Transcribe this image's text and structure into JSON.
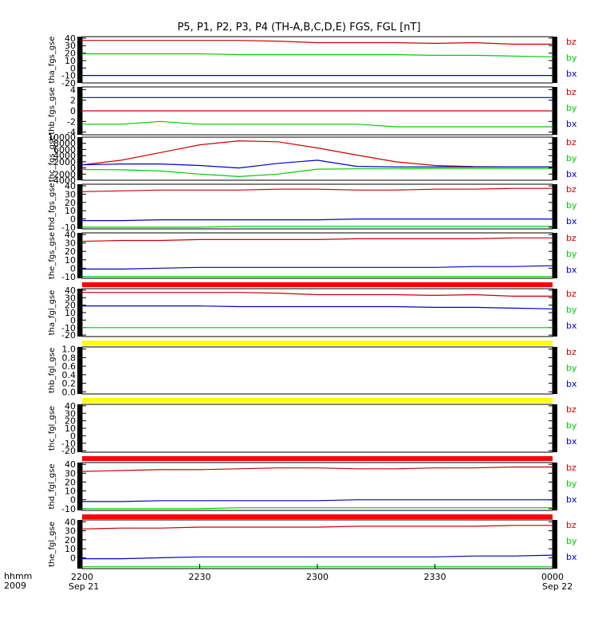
{
  "title": "P5, P1, P2, P3, P4 (TH-A,B,C,D,E) FGS, FGL [nT]",
  "time_axis": {
    "label_line1": "hhmm",
    "label_line2": "2009",
    "ticks": [
      "2200",
      "2230",
      "2300",
      "2330",
      "0000"
    ],
    "date_start": "Sep 21",
    "date_end": "Sep 22"
  },
  "colors": {
    "bz": "#cc0000",
    "by": "#00cc00",
    "bx": "#0000cc",
    "bar_red": "#ff0000",
    "bar_yellow": "#ffff00"
  },
  "chart_data": [
    {
      "type": "line",
      "ylabel": "tha_fgs_gse",
      "ylim": [
        -20,
        42
      ],
      "yticks": [
        "40",
        "30",
        "20",
        "10",
        "0",
        "-10",
        "-20"
      ],
      "tick_values": [
        40,
        30,
        20,
        10,
        0,
        -10,
        -20
      ],
      "series": [
        {
          "name": "bz",
          "values": [
            37,
            37,
            37,
            37,
            37,
            36,
            34,
            34,
            34,
            33,
            34,
            32,
            32
          ]
        },
        {
          "name": "by",
          "values": [
            19,
            19,
            19,
            19,
            18,
            18,
            18,
            18,
            18,
            17,
            17,
            16,
            15
          ]
        },
        {
          "name": "bx",
          "values": [
            -10,
            -10,
            -10,
            -10,
            -10,
            -10,
            -10,
            -10,
            -10,
            -10,
            -10,
            -10,
            -10
          ]
        }
      ]
    },
    {
      "type": "line",
      "ylabel": "thb_fgs_gse",
      "ylim": [
        -4.5,
        4.5
      ],
      "yticks": [
        "4",
        "2",
        "0",
        "-2",
        "-4"
      ],
      "tick_values": [
        4,
        2,
        0,
        -2,
        -4
      ],
      "series": [
        {
          "name": "bz",
          "values": [
            0,
            0,
            0,
            0,
            0,
            0,
            0,
            0,
            0,
            0,
            0,
            0,
            0
          ]
        },
        {
          "name": "by",
          "values": [
            -2.5,
            -2.5,
            -2,
            -2.5,
            -2.5,
            -2.5,
            -2.5,
            -2.5,
            -3,
            -3,
            -3,
            -3,
            -3
          ]
        },
        {
          "name": "bx",
          "values": [
            2.5,
            2.5,
            2.5,
            2.5,
            2.5,
            2.5,
            2.5,
            2.5,
            2.5,
            2.5,
            2.5,
            2.5,
            2.5
          ]
        }
      ]
    },
    {
      "type": "line",
      "ylabel": "thc_fgs_gse",
      "ylim": [
        -4000,
        10000
      ],
      "yticks": [
        "10000",
        "8000",
        "6000",
        "4000",
        "2000",
        "0",
        "-2000",
        "-4000"
      ],
      "tick_values": [
        10000,
        8000,
        6000,
        4000,
        2000,
        0,
        -2000,
        -4000
      ],
      "series": [
        {
          "name": "bz",
          "values": [
            1000,
            2500,
            5000,
            7500,
            8800,
            8500,
            6500,
            4200,
            2000,
            800,
            400,
            300,
            300
          ]
        },
        {
          "name": "by",
          "values": [
            -500,
            -600,
            -1000,
            -2000,
            -2800,
            -2000,
            -400,
            -300,
            -300,
            -200,
            -200,
            -200,
            -200
          ]
        },
        {
          "name": "bx",
          "values": [
            1000,
            1300,
            1300,
            800,
            0,
            1500,
            2500,
            500,
            300,
            300,
            300,
            300,
            300
          ]
        }
      ]
    },
    {
      "type": "line",
      "ylabel": "thd_fgs_gse",
      "ylim": [
        -12,
        42
      ],
      "yticks": [
        "40",
        "30",
        "20",
        "10",
        "0",
        "-10"
      ],
      "tick_values": [
        40,
        30,
        20,
        10,
        0,
        -10
      ],
      "series": [
        {
          "name": "bz",
          "values": [
            33,
            34,
            35,
            35,
            35,
            36,
            36,
            35,
            35,
            36,
            36,
            37,
            37
          ]
        },
        {
          "name": "by",
          "values": [
            -10,
            -10,
            -10,
            -10,
            -9,
            -9,
            -9,
            -9,
            -9,
            -9,
            -9,
            -9,
            -9
          ]
        },
        {
          "name": "bx",
          "values": [
            -2,
            -2,
            -1,
            -1,
            -1,
            -1,
            -1,
            0,
            0,
            0,
            0,
            0,
            0
          ]
        }
      ]
    },
    {
      "type": "line",
      "ylabel": "the_fgs_gse",
      "ylim": [
        -12,
        42
      ],
      "yticks": [
        "40",
        "30",
        "20",
        "10",
        "0",
        "-10"
      ],
      "tick_values": [
        40,
        30,
        20,
        10,
        0,
        -10
      ],
      "series": [
        {
          "name": "bz",
          "values": [
            32,
            33,
            33,
            34,
            34,
            34,
            34,
            35,
            35,
            35,
            35,
            36,
            36
          ]
        },
        {
          "name": "by",
          "values": [
            -10,
            -10,
            -10,
            -10,
            -10,
            -10,
            -10,
            -10,
            -10,
            -10,
            -10,
            -10,
            -10
          ]
        },
        {
          "name": "bx",
          "values": [
            -1,
            -1,
            0,
            1,
            1,
            1,
            1,
            1,
            1,
            1,
            2,
            2,
            3
          ]
        }
      ]
    },
    {
      "type": "line",
      "ylabel": "tha_fgl_gse",
      "ylim": [
        -22,
        42
      ],
      "yticks": [
        "40",
        "30",
        "20",
        "10",
        "0",
        "-10",
        "-20"
      ],
      "tick_values": [
        40,
        30,
        20,
        10,
        0,
        -10,
        -20
      ],
      "series": [
        {
          "name": "bz",
          "values": [
            37,
            37,
            37,
            37,
            37,
            36,
            34,
            34,
            34,
            33,
            34,
            32,
            32
          ]
        },
        {
          "name": "by",
          "values": [
            -10,
            -10,
            -10,
            -10,
            -10,
            -10,
            -10,
            -10,
            -10,
            -10,
            -10,
            -10,
            -10
          ]
        },
        {
          "name": "bx",
          "values": [
            19,
            19,
            19,
            19,
            18,
            18,
            18,
            18,
            18,
            17,
            17,
            16,
            15
          ]
        }
      ]
    },
    {
      "type": "line",
      "ylabel": "thb_fgl_gse",
      "ylim": [
        -0.05,
        1.05
      ],
      "yticks": [
        "1.0",
        "0.8",
        "0.6",
        "0.4",
        "0.2",
        "0.0"
      ],
      "tick_values": [
        1.0,
        0.8,
        0.6,
        0.4,
        0.2,
        0.0
      ],
      "series": []
    },
    {
      "type": "line",
      "ylabel": "thc_fgl_gse",
      "ylim": [
        -22,
        42
      ],
      "yticks": [
        "40",
        "30",
        "20",
        "10",
        "0",
        "-10",
        "-20"
      ],
      "tick_values": [
        40,
        30,
        20,
        10,
        0,
        -10,
        -20
      ],
      "series": []
    },
    {
      "type": "line",
      "ylabel": "thd_fgl_gse",
      "ylim": [
        -12,
        42
      ],
      "yticks": [
        "40",
        "30",
        "20",
        "10",
        "0",
        "-10"
      ],
      "tick_values": [
        40,
        30,
        20,
        10,
        0,
        -10
      ],
      "series": [
        {
          "name": "bz",
          "values": [
            32,
            33,
            34,
            34,
            35,
            36,
            36,
            35,
            35,
            36,
            36,
            37,
            37
          ]
        },
        {
          "name": "by",
          "values": [
            -10,
            -10,
            -10,
            -10,
            -9,
            -9,
            -9,
            -9,
            -9,
            -9,
            -9,
            -9,
            -9
          ]
        },
        {
          "name": "bx",
          "values": [
            -2,
            -2,
            -1,
            -1,
            -1,
            -1,
            -1,
            0,
            0,
            0,
            0,
            0,
            0
          ]
        }
      ]
    },
    {
      "type": "line",
      "ylabel": "the_fgl_gse",
      "ylim": [
        -12,
        42
      ],
      "yticks": [
        "40",
        "30",
        "20",
        "10",
        "0"
      ],
      "tick_values": [
        40,
        30,
        20,
        10,
        0
      ],
      "series": [
        {
          "name": "bz",
          "values": [
            32,
            33,
            33,
            34,
            34,
            34,
            34,
            35,
            35,
            35,
            35,
            36,
            36
          ]
        },
        {
          "name": "by",
          "values": [
            -10,
            -10,
            -10,
            -10,
            -10,
            -10,
            -10,
            -10,
            -10,
            -10,
            -10,
            -10,
            -10
          ]
        },
        {
          "name": "bx",
          "values": [
            -1,
            -1,
            0,
            1,
            1,
            1,
            1,
            1,
            1,
            1,
            2,
            2,
            3
          ]
        }
      ]
    }
  ],
  "legend_labels": [
    "bz",
    "by",
    "bx"
  ]
}
